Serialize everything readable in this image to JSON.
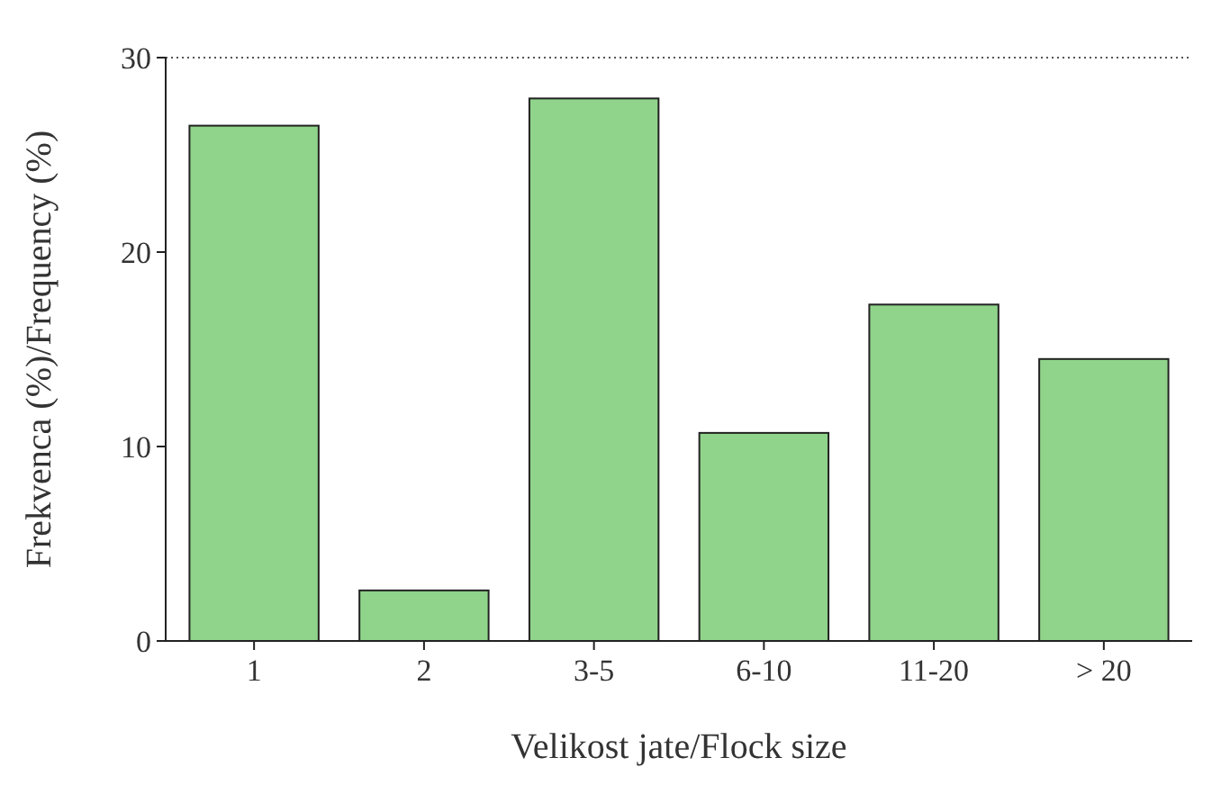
{
  "chart_data": {
    "type": "bar",
    "xlabel": "Velikost jate/Flock size",
    "ylabel": "Frekvenca (%)/Frequency (%)",
    "categories": [
      "1",
      "2",
      "3-5",
      "6-10",
      "11-20",
      "> 20"
    ],
    "values": [
      26.5,
      2.6,
      27.9,
      10.7,
      17.3,
      14.5
    ],
    "color": "#8fd48a",
    "ylim": [
      0,
      30
    ],
    "yticks": [
      0,
      10,
      20,
      30
    ],
    "grid": false
  }
}
